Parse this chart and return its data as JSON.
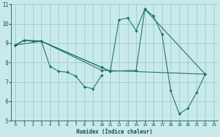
{
  "xlabel": "Humidex (Indice chaleur)",
  "bg_color": "#c8eaea",
  "grid_color": "#a0c8c8",
  "line_color": "#1a6e6e",
  "marker_color": "#1a6e6e",
  "xlim": [
    -0.5,
    23.5
  ],
  "ylim": [
    5,
    11
  ],
  "xticks": [
    0,
    1,
    2,
    3,
    4,
    5,
    6,
    7,
    8,
    9,
    10,
    11,
    12,
    13,
    14,
    15,
    16,
    17,
    18,
    19,
    20,
    21,
    22,
    23
  ],
  "yticks": [
    5,
    6,
    7,
    8,
    9,
    10,
    11
  ],
  "series": [
    [
      [
        0,
        8.9
      ],
      [
        1,
        9.15
      ],
      [
        2,
        9.1
      ],
      [
        3,
        9.1
      ],
      [
        4,
        7.8
      ],
      [
        5,
        7.55
      ],
      [
        6,
        7.5
      ],
      [
        7,
        7.3
      ],
      [
        8,
        6.75
      ],
      [
        9,
        6.65
      ],
      [
        10,
        7.35
      ]
    ],
    [
      [
        0,
        8.9
      ],
      [
        1,
        9.15
      ],
      [
        3,
        9.1
      ],
      [
        10,
        7.75
      ],
      [
        11,
        7.55
      ],
      [
        12,
        10.2
      ],
      [
        13,
        10.3
      ],
      [
        14,
        9.65
      ],
      [
        15,
        10.75
      ],
      [
        16,
        10.4
      ],
      [
        17,
        9.45
      ],
      [
        18,
        6.55
      ],
      [
        19,
        5.35
      ],
      [
        20,
        5.65
      ],
      [
        21,
        6.45
      ],
      [
        22,
        7.4
      ]
    ],
    [
      [
        0,
        8.9
      ],
      [
        1,
        9.15
      ],
      [
        3,
        9.1
      ],
      [
        10,
        7.75
      ],
      [
        11,
        7.55
      ],
      [
        14,
        7.6
      ],
      [
        15,
        10.75
      ],
      [
        22,
        7.4
      ]
    ],
    [
      [
        0,
        8.9
      ],
      [
        3,
        9.1
      ],
      [
        10,
        7.6
      ],
      [
        22,
        7.4
      ]
    ]
  ]
}
